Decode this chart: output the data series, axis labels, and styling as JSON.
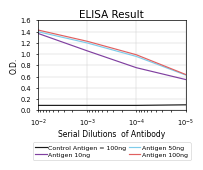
{
  "title": "ELISA Result",
  "xlabel": "Serial Dilutions  of Antibody",
  "ylabel": "O.D.",
  "xvals": [
    0.01,
    0.001,
    0.0001,
    1e-05
  ],
  "lines": [
    {
      "label": "Control Antigen = 100ng",
      "color": "#1a1a1a",
      "y": [
        0.09,
        0.09,
        0.09,
        0.1
      ]
    },
    {
      "label": "Antigen 10ng",
      "color": "#8040a0",
      "y": [
        1.37,
        1.06,
        0.76,
        0.55
      ]
    },
    {
      "label": "Antigen 50ng",
      "color": "#7eccea",
      "y": [
        1.4,
        1.2,
        0.96,
        0.63
      ]
    },
    {
      "label": "Antigen 100ng",
      "color": "#e06060",
      "y": [
        1.43,
        1.23,
        0.99,
        0.64
      ]
    }
  ],
  "ylim": [
    0,
    1.6
  ],
  "yticks": [
    0,
    0.2,
    0.4,
    0.6,
    0.8,
    1.0,
    1.2,
    1.4,
    1.6
  ],
  "legend_fontsize": 4.5,
  "title_fontsize": 7.5,
  "axis_fontsize": 5.5,
  "tick_fontsize": 4.8,
  "background_color": "#ffffff",
  "legend_labels": [
    "Control Antigen = 100ng",
    "Antigen 10ng",
    "Antigen 50ng",
    "Antigen 100ng"
  ],
  "legend_colors": [
    "#1a1a1a",
    "#8040a0",
    "#7eccea",
    "#e06060"
  ]
}
